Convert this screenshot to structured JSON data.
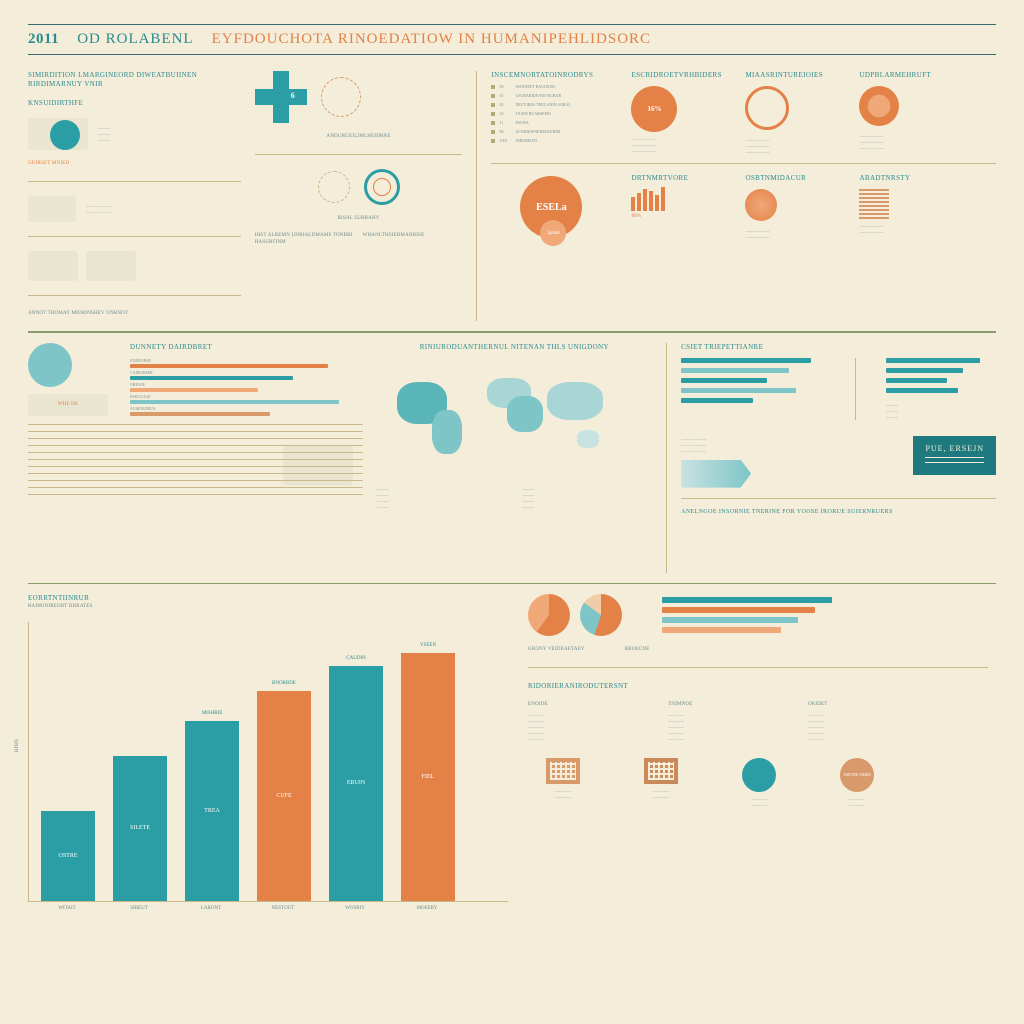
{
  "colors": {
    "bg": "#f3edd9",
    "teal": "#2a9ea4",
    "teal_dark": "#1f7a7f",
    "teal_light": "#7ec5c8",
    "orange": "#e38146",
    "orange_light": "#f0a878",
    "tan": "#c9b88a",
    "olive": "#8b9a6a",
    "text_primary": "#2a8a8f",
    "text_muted": "#6b8a8c"
  },
  "header": {
    "year": "2011",
    "part_a": "OD ROLABENL",
    "part_b": "EYFDOUCHOTA RINOEDATIOW IN HUMANIPEHLIDSORC"
  },
  "top_left": {
    "heading": "SIMIRDITION LMARGINEORD DIWEATBUIINEN RIRDIMARNUY VNIR",
    "subheading": "KNSUIDIRTHFE",
    "stat_label": "GUIRSET MNIED",
    "sub1": "ANDURGEILIMLHEIDRNE",
    "sub2": "PSOHRTI MODERY",
    "footer": "ANNOT TROMAY   MIDRINSHEV UNRNOT"
  },
  "top_mid": {
    "cross_label": "6",
    "item1": "RISAL SURRAHV",
    "desc1": "IHST ALREMN UNRIALDMAMS TONBRI HASURTINM",
    "desc2": "WHANLTHSIERMANRISE"
  },
  "top_right": {
    "list_heading": "INSCEMNORTATOINRODRYS",
    "list_items": [
      "00",
      "01",
      "02",
      "10",
      "11",
      "80",
      "1001"
    ],
    "list_text": [
      "WANNEET RAUIDOM",
      "CSURARIDIVER NICBAR",
      "DEUYIRES TRULANIN SORAL",
      "TILEM RUARSEMN",
      "ESUNA",
      "ACNEROFNERSEDURIM",
      "INBORIETD"
    ],
    "grid_headers": [
      "ESCRIDROETVRHBIDERS",
      "MIAASRINTUREIOIES",
      "UDPBLARMEHRUFT"
    ],
    "circle1_label": "16%",
    "circle2_label": "ESELa",
    "circle2_sub": "Spatal",
    "sub_section": "DRTNMRTVORE",
    "stat_val": "88%",
    "cat_a": "OSBTNMIDACUR",
    "cat_b": "ABADTNRSTY"
  },
  "mid": {
    "section_title": "RINIURODUANTHERNUL NITENAN THLS UNIGDONY",
    "left_heading": "DUNNETY DAIRDBRET",
    "left_items": [
      "EXDEORSE",
      "CAIRODSER",
      "ORIDOE",
      "ESSCCOGE",
      "AUMOEDRUS"
    ],
    "left_stat": "WHE DE",
    "right_top": "CSIET TRIEPETTIANRE",
    "right_list": [
      "UNRODORE",
      "AEAD UST",
      "BRLOSEN"
    ],
    "right_box": "PUE, ERSEJN",
    "right_sub": "ANELNGOE INSORNIE TNERINE FOR YOOSE IRORUE SUIERNRUERS"
  },
  "bar_chart": {
    "type": "bar",
    "section_label": "EORRTNTIINRUR",
    "section_sub": "RADRINIREORT DHRATES",
    "top_labels": [
      "MISHRIE",
      "BNORRDE",
      "CAUDIN",
      "VSEEN"
    ],
    "values": [
      90,
      145,
      180,
      210,
      235,
      248
    ],
    "inside_labels": [
      "OSTRE",
      "SILETE",
      "TREA",
      "CUFE",
      "ERUIN",
      "FIEL"
    ],
    "bar_colors": [
      "#2a9ea4",
      "#2a9ea4",
      "#2a9ea4",
      "#e38146",
      "#2a9ea4",
      "#e38146"
    ],
    "x_labels": [
      "WITAIT",
      "SIREUT",
      "LARONT",
      "NESTOUT",
      "WOSRIY",
      "MOEERY"
    ],
    "y_axis_label": "BINN"
  },
  "bot_right": {
    "pie_values": [
      [
        60,
        40
      ],
      [
        55,
        30,
        15
      ]
    ],
    "pie_colors": [
      [
        "#e38146",
        "#f0a878"
      ],
      [
        "#e38146",
        "#7ec5c8",
        "#f0cda8"
      ]
    ],
    "pie_labels": [
      "GRONY VEIDEAETAEY",
      "BROECNE"
    ],
    "grad_colors": [
      "#2a9ea4",
      "#e38146",
      "#7ec5c8",
      "#f0a878"
    ],
    "section2": "RIDORIERANIRODUTERSNT",
    "col_heads": [
      "ENOIDE",
      "TNIMNOE",
      "ORIDET",
      "MOREDE"
    ],
    "final_metric": "ASETDE OMEE"
  }
}
